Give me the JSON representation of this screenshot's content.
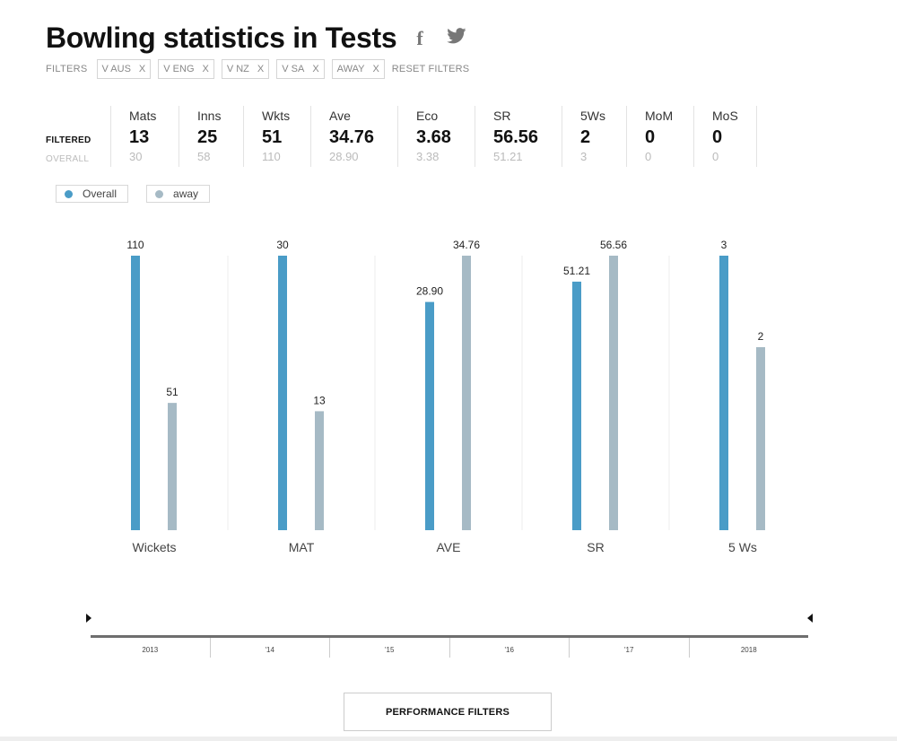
{
  "title": "Bowling statistics in Tests",
  "share": {
    "facebook_glyph": "f",
    "twitter_icon": "twitter-bird"
  },
  "filters": {
    "label": "FILTERS",
    "chips": [
      {
        "label": "V AUS",
        "remove": "X"
      },
      {
        "label": "V ENG",
        "remove": "X"
      },
      {
        "label": "V NZ",
        "remove": "X"
      },
      {
        "label": "V SA",
        "remove": "X"
      },
      {
        "label": "AWAY",
        "remove": "X"
      }
    ],
    "reset": "RESET FILTERS"
  },
  "stats": {
    "row_filtered": "FILTERED",
    "row_overall": "OVERALL",
    "columns": [
      {
        "label": "Mats",
        "filtered": "13",
        "overall": "30"
      },
      {
        "label": "Inns",
        "filtered": "25",
        "overall": "58"
      },
      {
        "label": "Wkts",
        "filtered": "51",
        "overall": "110"
      },
      {
        "label": "Ave",
        "filtered": "34.76",
        "overall": "28.90"
      },
      {
        "label": "Eco",
        "filtered": "3.68",
        "overall": "3.38"
      },
      {
        "label": "SR",
        "filtered": "56.56",
        "overall": "51.21"
      },
      {
        "label": "5Ws",
        "filtered": "2",
        "overall": "3"
      },
      {
        "label": "MoM",
        "filtered": "0",
        "overall": "0"
      },
      {
        "label": "MoS",
        "filtered": "0",
        "overall": "0"
      }
    ]
  },
  "legend": [
    {
      "label": "Overall",
      "color": "#4a9cc7"
    },
    {
      "label": "away",
      "color": "#a6bac5"
    }
  ],
  "chart_data": {
    "type": "bar",
    "categories": [
      "Wickets",
      "MAT",
      "AVE",
      "SR",
      "5 Ws"
    ],
    "series": [
      {
        "name": "Overall",
        "color": "#4a9cc7",
        "values": [
          110,
          30,
          28.9,
          51.21,
          3
        ],
        "labels": [
          "110",
          "30",
          "28.90",
          "51.21",
          "3"
        ]
      },
      {
        "name": "away",
        "color": "#a6bac5",
        "values": [
          51,
          13,
          34.76,
          56.56,
          2
        ],
        "labels": [
          "51",
          "13",
          "34.76",
          "56.56",
          "2"
        ]
      }
    ],
    "scale": "each category scaled to its own maximum",
    "grid": false,
    "legend_position": "top-left"
  },
  "timeline": {
    "years": [
      "2013",
      "'14",
      "'15",
      "'16",
      "'17",
      "2018"
    ]
  },
  "performance_button": "PERFORMANCE FILTERS"
}
